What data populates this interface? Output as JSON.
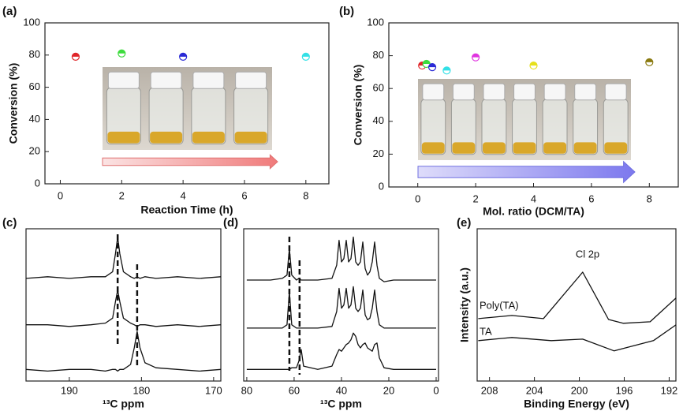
{
  "chart_data": [
    {
      "type": "scatter",
      "panel_label": "(a)",
      "x_label": "Reaction Time (h)",
      "y_label": "Conversion (%)",
      "xlim": [
        -0.5,
        8.75
      ],
      "ylim": [
        0,
        100
      ],
      "xticks": [
        0,
        2,
        4,
        6,
        8
      ],
      "yticks": [
        0,
        20,
        40,
        60,
        80,
        100
      ],
      "x": [
        0.5,
        2,
        4,
        8
      ],
      "values": [
        79,
        81,
        79,
        79
      ],
      "colors": [
        "#e0262a",
        "#3ddc3d",
        "#2a2ad6",
        "#33e0e6"
      ]
    },
    {
      "type": "scatter",
      "panel_label": "(b)",
      "x_label": "Mol. ratio (DCM/TA)",
      "y_label": "Conversion (%)",
      "xlim": [
        -1,
        9
      ],
      "ylim": [
        0,
        100
      ],
      "xticks": [
        0,
        2,
        4,
        6,
        8
      ],
      "yticks": [
        0,
        20,
        40,
        60,
        80,
        100
      ],
      "x": [
        0.15,
        0.3,
        0.5,
        1,
        2,
        4,
        8
      ],
      "values": [
        74,
        75,
        73,
        71,
        79,
        74,
        76
      ],
      "colors": [
        "#e0262a",
        "#3ddc3d",
        "#2a2ad6",
        "#33e0e6",
        "#e033e0",
        "#e6e01a",
        "#8a7a10"
      ]
    },
    {
      "type": "line",
      "panel_label": "(c)",
      "x_label": "¹³C ppm",
      "xlim": [
        196,
        169
      ],
      "ylim": [
        8,
        100
      ],
      "xticks": [
        190,
        180,
        170
      ],
      "vlines": [
        183.3,
        180.6
      ],
      "x": [
        196,
        193,
        190,
        187,
        185,
        184,
        183.6,
        183.3,
        183,
        182.5,
        181.5,
        181,
        180.6,
        180.2,
        179.5,
        178,
        175,
        172,
        169
      ],
      "series": [
        {
          "color": "#111",
          "values": [
            70,
            71,
            70,
            71,
            71,
            74,
            85,
            95,
            85,
            74,
            71,
            70,
            71,
            70,
            71,
            70,
            71,
            70,
            71
          ]
        },
        {
          "color": "#111",
          "values": [
            42,
            42,
            41,
            42,
            43,
            46,
            56,
            63,
            56,
            46,
            43,
            42,
            41,
            42,
            42,
            41,
            42,
            41,
            42
          ]
        },
        {
          "color": "#111",
          "values": [
            15,
            14,
            15,
            15,
            14,
            15,
            15,
            14,
            15,
            15,
            18,
            28,
            38,
            28,
            19,
            16,
            15,
            14,
            15
          ]
        }
      ]
    },
    {
      "type": "line",
      "panel_label": "(d)",
      "x_label": "¹³C ppm",
      "xlim": [
        81.3,
        -1
      ],
      "ylim": [
        8,
        100
      ],
      "xticks": [
        80,
        60,
        40,
        20,
        0
      ],
      "vlines": [
        62,
        57.7
      ],
      "x": [
        80,
        70,
        65,
        63,
        62,
        61,
        59,
        58,
        57,
        56,
        50,
        44,
        42,
        41,
        40,
        39,
        38,
        37,
        36,
        35,
        34,
        33,
        32,
        31,
        30,
        29,
        28,
        27,
        26,
        25,
        24,
        22,
        18,
        10,
        0
      ],
      "series": [
        {
          "color": "#111",
          "values": [
            69,
            69,
            70,
            72,
            88,
            72,
            69,
            70,
            69,
            69,
            69,
            70,
            78,
            93,
            80,
            82,
            93,
            80,
            82,
            95,
            80,
            78,
            80,
            92,
            76,
            72,
            74,
            80,
            92,
            78,
            70,
            68,
            69,
            69,
            69
          ]
        },
        {
          "color": "#111",
          "values": [
            40,
            40,
            40,
            42,
            62,
            42,
            40,
            40,
            40,
            40,
            40,
            41,
            50,
            64,
            52,
            54,
            64,
            52,
            54,
            65,
            52,
            50,
            52,
            63,
            48,
            45,
            46,
            52,
            63,
            50,
            42,
            40,
            40,
            40,
            40
          ]
        },
        {
          "color": "#111",
          "values": [
            15,
            15,
            15,
            15,
            15,
            16,
            16,
            20,
            27,
            17,
            15,
            17,
            24,
            27,
            26,
            28,
            30,
            31,
            33,
            37,
            35,
            30,
            28,
            30,
            31,
            28,
            27,
            26,
            30,
            31,
            22,
            16,
            15,
            15,
            15
          ]
        }
      ]
    },
    {
      "type": "line",
      "panel_label": "(e)",
      "x_label": "Binding Energy (eV)",
      "y_label": "Intensity (a.u.)",
      "xlim": [
        209.1,
        191.4
      ],
      "ylim": [
        8,
        100
      ],
      "xticks": [
        208,
        204,
        200,
        196,
        192
      ],
      "annotations": [
        "Cl 2p"
      ],
      "series": [
        {
          "name": "Poly(TA)",
          "color": "#111",
          "x": [
            209,
            206,
            203.2,
            200,
            199.7,
            197.4,
            196.1,
            193.7,
            191.4
          ],
          "values": [
            45.7,
            47.6,
            45.7,
            71.4,
            73.8,
            45.2,
            42.9,
            43.8,
            58.1
          ]
        },
        {
          "name": "TA",
          "color": "#111",
          "x": [
            209,
            206,
            202.5,
            199.7,
            196.9,
            193.4,
            191.4
          ],
          "values": [
            32.4,
            34.3,
            32.4,
            33.3,
            26.2,
            32.4,
            41.9
          ]
        }
      ]
    }
  ]
}
